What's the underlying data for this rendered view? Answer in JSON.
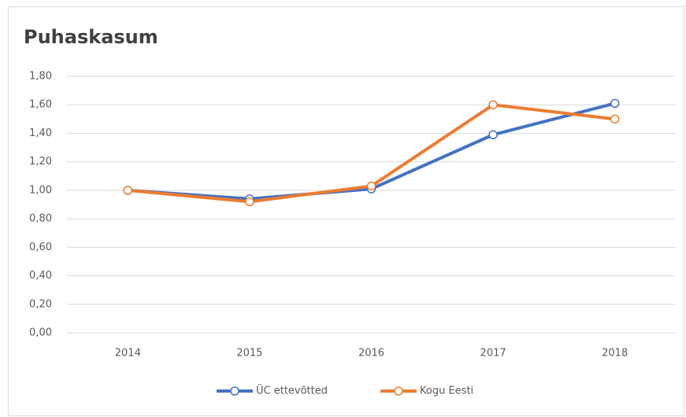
{
  "chart_data": {
    "type": "line",
    "title": "Puhaskasum",
    "categories": [
      "2014",
      "2015",
      "2016",
      "2017",
      "2018"
    ],
    "series": [
      {
        "name": "ÜC ettevõtted",
        "color": "#4472c4",
        "values": [
          1.0,
          0.94,
          1.01,
          1.39,
          1.61
        ]
      },
      {
        "name": "Kogu Eesti",
        "color": "#ed7d31",
        "values": [
          1.0,
          0.92,
          1.03,
          1.6,
          1.5
        ]
      }
    ],
    "ylim": [
      0,
      1.8
    ],
    "yticks": [
      {
        "value": 0,
        "label": "0,00"
      },
      {
        "value": 0.2,
        "label": "0,20"
      },
      {
        "value": 0.4,
        "label": "0,40"
      },
      {
        "value": 0.6,
        "label": "0,60"
      },
      {
        "value": 0.8,
        "label": "0,80"
      },
      {
        "value": 1.0,
        "label": "1,00"
      },
      {
        "value": 1.2,
        "label": "1,20"
      },
      {
        "value": 1.4,
        "label": "1,40"
      },
      {
        "value": 1.6,
        "label": "1,60"
      },
      {
        "value": 1.8,
        "label": "1,80"
      }
    ],
    "grid": true,
    "legend": "bottom"
  }
}
